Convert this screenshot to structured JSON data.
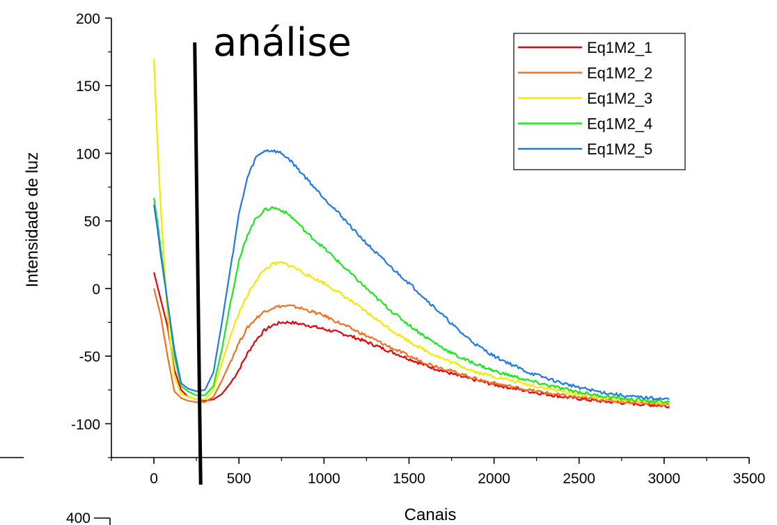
{
  "chart_data": {
    "type": "line",
    "title": "",
    "xlabel": "Canais",
    "ylabel": "Intensidade de luz",
    "xlim": [
      -250,
      3500
    ],
    "ylim": [
      -125,
      200
    ],
    "x_ticks": [
      0,
      500,
      1000,
      1500,
      2000,
      2500,
      3000,
      3500
    ],
    "x_tick_labels": [
      "0",
      "500",
      "1000",
      "1500",
      "2000",
      "2500",
      "3000",
      "3500"
    ],
    "y_ticks": [
      -100,
      -50,
      0,
      50,
      100,
      150,
      200
    ],
    "y_tick_labels": [
      "-100",
      "-50",
      "0",
      "50",
      "100",
      "150",
      "200"
    ],
    "grid": false,
    "legend_position": "top-right",
    "series": [
      {
        "name": "Eq1M2_1",
        "color": "#e8000b",
        "x": [
          0,
          40,
          80,
          120,
          160,
          200,
          250,
          300,
          350,
          400,
          450,
          500,
          550,
          600,
          650,
          700,
          750,
          800,
          850,
          900,
          1000,
          1100,
          1200,
          1300,
          1400,
          1500,
          1600,
          1700,
          1800,
          1900,
          2000,
          2200,
          2400,
          2600,
          2800,
          3030
        ],
        "y": [
          12,
          -8,
          -28,
          -60,
          -75,
          -80,
          -82,
          -83,
          -82,
          -78,
          -70,
          -60,
          -48,
          -38,
          -31,
          -27,
          -25,
          -25,
          -26,
          -27,
          -30,
          -33,
          -37,
          -42,
          -47,
          -52,
          -57,
          -61,
          -65,
          -68,
          -71,
          -76,
          -80,
          -83,
          -85,
          -87
        ]
      },
      {
        "name": "Eq1M2_2",
        "color": "#f07020",
        "x": [
          0,
          40,
          80,
          120,
          160,
          200,
          250,
          300,
          350,
          400,
          450,
          500,
          550,
          600,
          650,
          700,
          750,
          800,
          850,
          900,
          1000,
          1100,
          1200,
          1300,
          1400,
          1500,
          1600,
          1700,
          1800,
          1900,
          2000,
          2200,
          2400,
          2600,
          2800,
          3030
        ],
        "y": [
          0,
          -20,
          -50,
          -76,
          -81,
          -83,
          -84,
          -84,
          -80,
          -68,
          -54,
          -40,
          -29,
          -22,
          -17,
          -14,
          -13,
          -13,
          -14,
          -16,
          -20,
          -26,
          -32,
          -38,
          -44,
          -50,
          -55,
          -59,
          -63,
          -67,
          -70,
          -75,
          -79,
          -82,
          -84,
          -86
        ]
      },
      {
        "name": "Eq1M2_3",
        "color": "#f5e800",
        "x": [
          0,
          20,
          40,
          60,
          80,
          100,
          120,
          160,
          200,
          250,
          300,
          350,
          400,
          450,
          500,
          550,
          600,
          650,
          700,
          750,
          800,
          850,
          900,
          1000,
          1100,
          1200,
          1300,
          1400,
          1500,
          1600,
          1700,
          1800,
          1900,
          2000,
          2200,
          2400,
          2600,
          2800,
          3030
        ],
        "y": [
          170,
          110,
          60,
          20,
          -20,
          -45,
          -65,
          -78,
          -80,
          -82,
          -82,
          -75,
          -55,
          -35,
          -18,
          -5,
          6,
          14,
          18,
          19,
          17,
          14,
          10,
          4,
          -4,
          -13,
          -22,
          -31,
          -39,
          -46,
          -52,
          -57,
          -62,
          -65,
          -71,
          -76,
          -80,
          -83,
          -85
        ]
      },
      {
        "name": "Eq1M2_4",
        "color": "#1ee61e",
        "x": [
          0,
          20,
          40,
          80,
          120,
          160,
          200,
          250,
          300,
          350,
          400,
          450,
          500,
          550,
          600,
          650,
          700,
          750,
          800,
          850,
          900,
          1000,
          1100,
          1200,
          1300,
          1400,
          1500,
          1600,
          1700,
          1800,
          1900,
          2000,
          2200,
          2400,
          2600,
          2800,
          3030
        ],
        "y": [
          67,
          50,
          30,
          -10,
          -50,
          -72,
          -76,
          -79,
          -79,
          -72,
          -45,
          -10,
          20,
          40,
          52,
          58,
          60,
          58,
          54,
          48,
          41,
          30,
          18,
          6,
          -6,
          -17,
          -27,
          -36,
          -44,
          -51,
          -56,
          -61,
          -68,
          -74,
          -79,
          -82,
          -84
        ]
      },
      {
        "name": "Eq1M2_5",
        "color": "#1f78e8",
        "x": [
          0,
          20,
          40,
          80,
          120,
          160,
          200,
          250,
          300,
          350,
          400,
          450,
          500,
          550,
          600,
          650,
          700,
          750,
          800,
          850,
          900,
          1000,
          1100,
          1200,
          1300,
          1400,
          1500,
          1600,
          1700,
          1800,
          1900,
          2000,
          2200,
          2400,
          2600,
          2800,
          3030
        ],
        "y": [
          62,
          45,
          25,
          -10,
          -45,
          -70,
          -74,
          -76,
          -75,
          -62,
          -25,
          15,
          55,
          82,
          97,
          102,
          102,
          100,
          95,
          88,
          81,
          67,
          54,
          40,
          27,
          15,
          4,
          -8,
          -20,
          -32,
          -42,
          -50,
          -62,
          -70,
          -76,
          -80,
          -82
        ]
      }
    ],
    "annotation": {
      "text": "análise",
      "line_x_top": 240,
      "line_y_top": 182,
      "line_x_bottom": 275,
      "line_y_bottom": -145
    },
    "partial_below": {
      "y_tick_label": "400"
    }
  }
}
